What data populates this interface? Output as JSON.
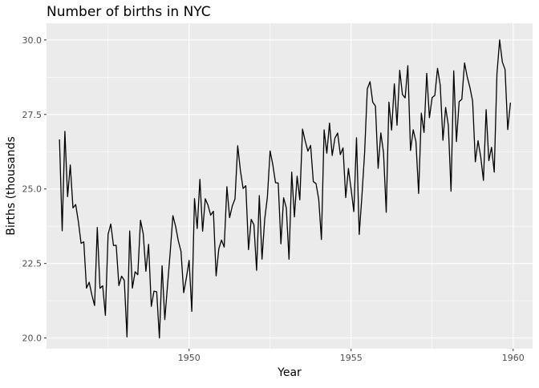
{
  "chart_data": {
    "type": "line",
    "title": "Number of births in NYC",
    "xlabel": "Year",
    "ylabel": "Births (thousands",
    "xlim": [
      1945.6,
      1960.6
    ],
    "ylim": [
      19.64,
      30.56
    ],
    "x_ticks": [
      1950,
      1955,
      1960
    ],
    "x_tick_labels": [
      "1950",
      "1955",
      "1960"
    ],
    "y_ticks": [
      20.0,
      22.5,
      25.0,
      27.5,
      30.0
    ],
    "y_tick_labels": [
      "20.0",
      "22.5",
      "25.0",
      "27.5",
      "30.0"
    ],
    "grid": true,
    "background": "#EBEBEB",
    "grid_color": "#FFFFFF",
    "line_color": "#000000",
    "x_start_year": 1946,
    "x_step_months": 1,
    "series": [
      {
        "values": [
          26.663,
          23.598,
          26.931,
          24.74,
          25.806,
          24.364,
          24.477,
          23.901,
          23.175,
          23.227,
          21.672,
          21.87,
          21.439,
          21.089,
          23.709,
          21.669,
          21.752,
          20.761,
          23.479,
          23.824,
          23.105,
          23.11,
          21.759,
          22.073,
          21.937,
          20.035,
          23.59,
          21.672,
          22.222,
          22.123,
          23.95,
          23.504,
          22.238,
          23.142,
          21.059,
          21.573,
          21.548,
          20.0,
          22.424,
          20.615,
          21.761,
          22.874,
          24.104,
          23.748,
          23.262,
          22.907,
          21.519,
          22.025,
          22.604,
          20.894,
          24.677,
          23.673,
          25.32,
          23.583,
          24.671,
          24.454,
          24.122,
          24.252,
          22.084,
          22.991,
          23.287,
          23.049,
          25.076,
          24.037,
          24.43,
          24.667,
          26.451,
          25.618,
          25.014,
          25.11,
          22.964,
          23.981,
          23.798,
          22.27,
          24.775,
          22.646,
          23.988,
          24.737,
          26.276,
          25.816,
          25.21,
          25.199,
          23.162,
          24.707,
          24.364,
          22.644,
          25.565,
          24.062,
          25.431,
          24.635,
          27.009,
          26.606,
          26.268,
          26.462,
          25.246,
          25.18,
          24.657,
          23.304,
          26.982,
          26.199,
          27.21,
          26.122,
          26.706,
          26.878,
          26.152,
          26.379,
          24.712,
          25.688,
          24.99,
          24.239,
          26.721,
          23.475,
          24.767,
          26.219,
          28.361,
          28.599,
          27.914,
          27.784,
          25.693,
          26.881,
          26.217,
          24.218,
          27.914,
          26.975,
          28.527,
          27.139,
          28.982,
          28.169,
          28.056,
          29.136,
          26.291,
          26.987,
          26.589,
          24.848,
          27.543,
          26.896,
          28.878,
          27.39,
          28.065,
          28.141,
          29.048,
          28.484,
          26.634,
          27.735,
          27.132,
          24.924,
          28.963,
          26.589,
          27.931,
          28.009,
          29.229,
          28.759,
          28.405,
          27.945,
          25.912,
          26.619,
          26.076,
          25.286,
          27.66,
          25.951,
          26.398,
          25.565,
          28.865,
          30.0,
          29.261,
          29.012,
          26.992,
          27.897
        ]
      }
    ]
  }
}
